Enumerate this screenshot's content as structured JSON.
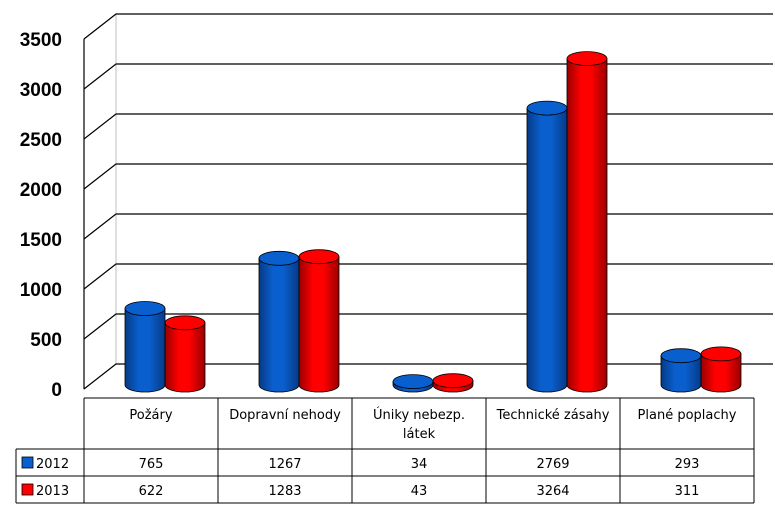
{
  "chart_data": {
    "type": "bar",
    "categories": [
      "Požáry",
      "Dopravní nehody",
      "Úniky nebezp. látek",
      "Technické zásahy",
      "Plané poplachy"
    ],
    "series": [
      {
        "name": "2012",
        "values": [
          765,
          1267,
          34,
          2769,
          293
        ],
        "color": "#0a5fcf",
        "dark": "#063a86"
      },
      {
        "name": "2013",
        "values": [
          622,
          1283,
          43,
          3264,
          311
        ],
        "color": "#ff0000",
        "dark": "#990000"
      }
    ],
    "ylim": [
      0,
      3500
    ],
    "yticks": [
      0,
      500,
      1000,
      1500,
      2000,
      2500,
      3000,
      3500
    ],
    "grid": true,
    "legend": "data-table",
    "title": "",
    "xlabel": "",
    "ylabel": ""
  }
}
